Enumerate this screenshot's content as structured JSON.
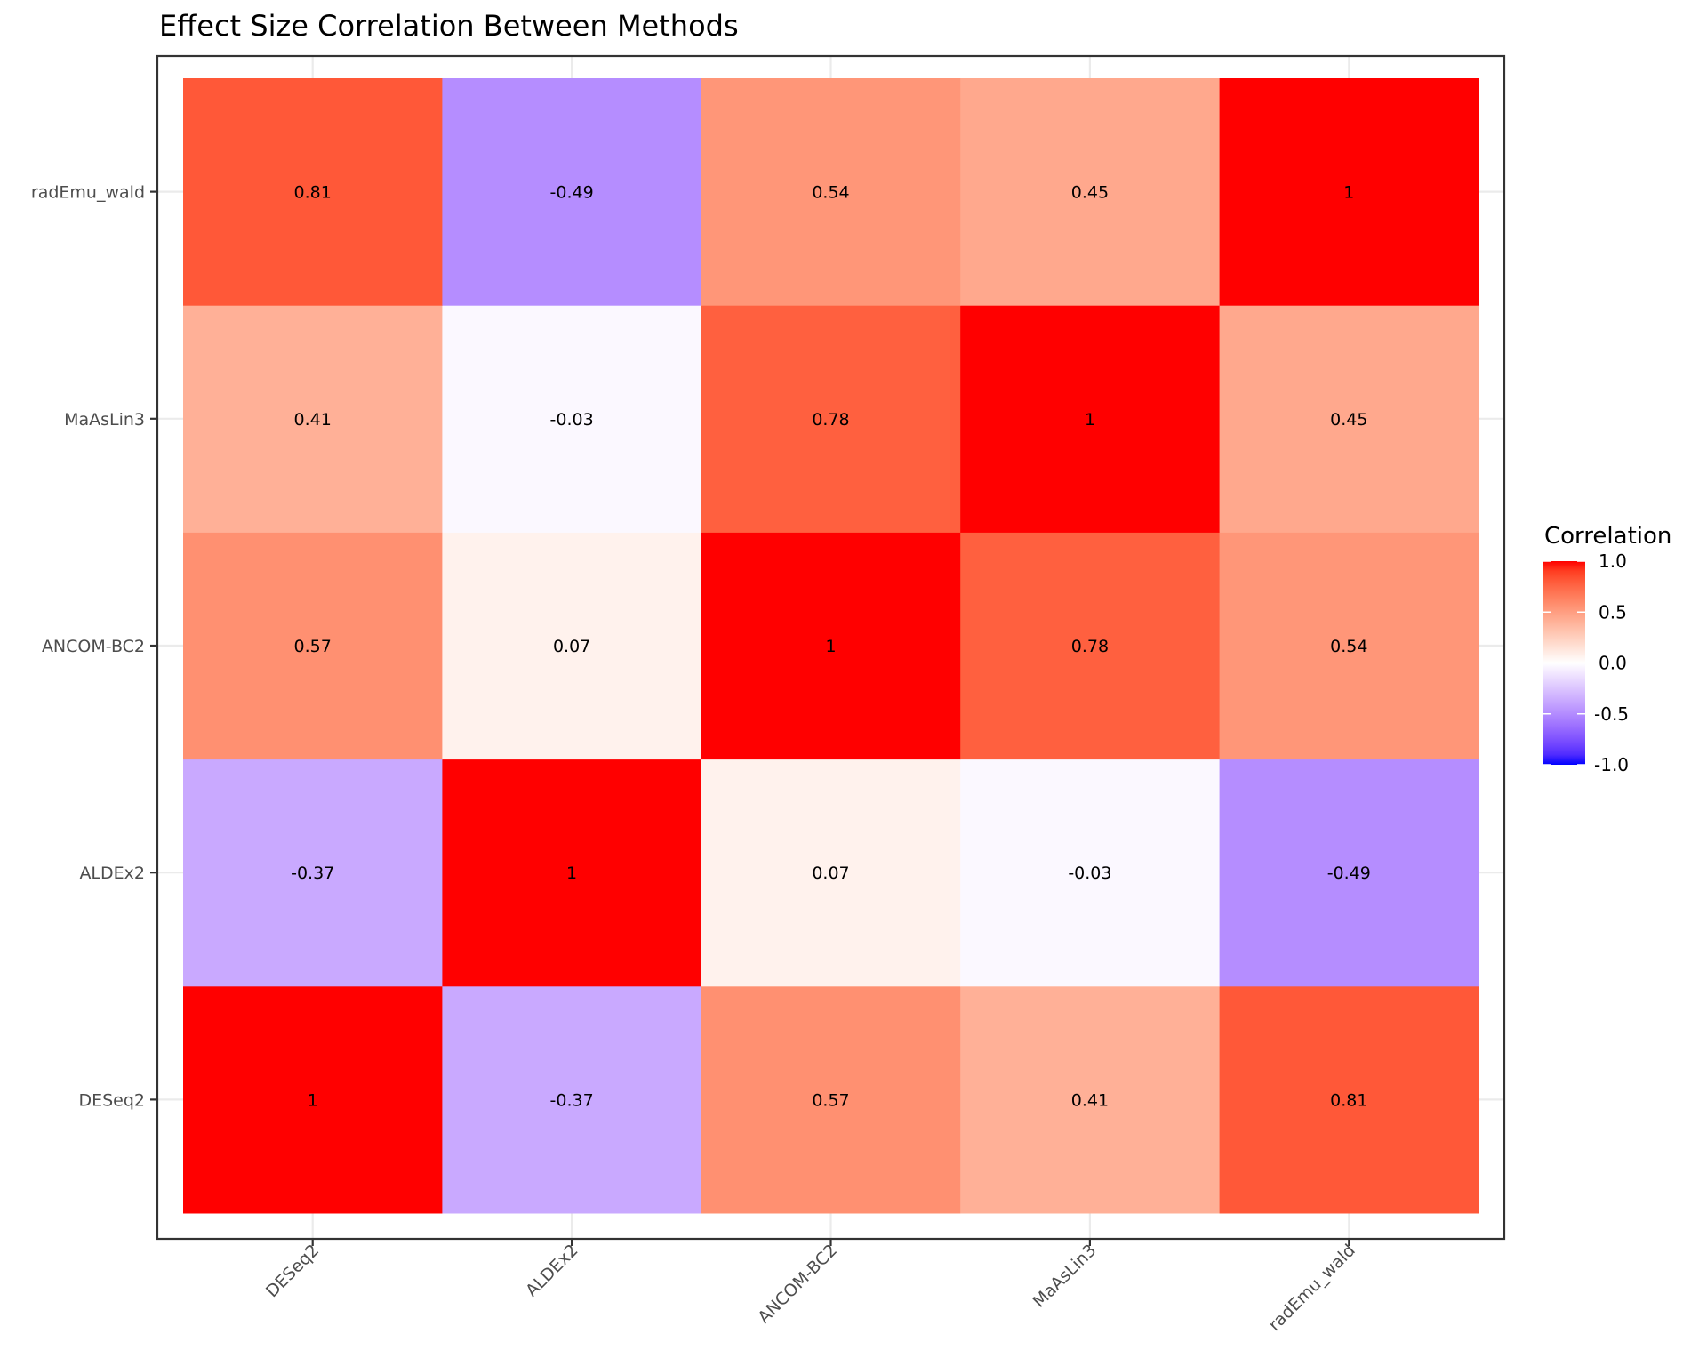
{
  "chart_data": {
    "type": "heatmap",
    "title": "Effect Size Correlation Between Methods",
    "xlabel": "",
    "ylabel": "",
    "x_categories": [
      "DESeq2",
      "ALDEx2",
      "ANCOM-BC2",
      "MaAsLin3",
      "radEmu_wald"
    ],
    "y_categories": [
      "DESeq2",
      "ALDEx2",
      "ANCOM-BC2",
      "MaAsLin3",
      "radEmu_wald"
    ],
    "y_order": "bottom-to-top",
    "values": [
      [
        1,
        -0.37,
        0.57,
        0.41,
        0.81
      ],
      [
        -0.37,
        1,
        0.07,
        -0.03,
        -0.49
      ],
      [
        0.57,
        0.07,
        1,
        0.78,
        0.54
      ],
      [
        0.41,
        -0.03,
        0.78,
        1,
        0.45
      ],
      [
        0.81,
        -0.49,
        0.54,
        0.45,
        1
      ]
    ],
    "cell_labels": [
      [
        "1",
        "-0.37",
        "0.57",
        "0.41",
        "0.81"
      ],
      [
        "-0.37",
        "1",
        "0.07",
        "-0.03",
        "-0.49"
      ],
      [
        "0.57",
        "0.07",
        "1",
        "0.78",
        "0.54"
      ],
      [
        "0.41",
        "-0.03",
        "0.78",
        "1",
        "0.45"
      ],
      [
        "0.81",
        "-0.49",
        "0.54",
        "0.45",
        "1"
      ]
    ],
    "color_scale": {
      "low": "#0000FF",
      "mid": "#FFFFFF",
      "high": "#FF0000",
      "limits": [
        -1,
        1
      ],
      "midpoint": 0
    },
    "legend": {
      "title": "Correlation",
      "ticks": [
        "1.0",
        "0.5",
        "0.0",
        "-0.5",
        "-1.0"
      ],
      "tick_values": [
        1,
        0.5,
        0,
        -0.5,
        -1
      ],
      "placement": "right"
    },
    "grid": true,
    "x_tick_rotation_deg": 45
  }
}
